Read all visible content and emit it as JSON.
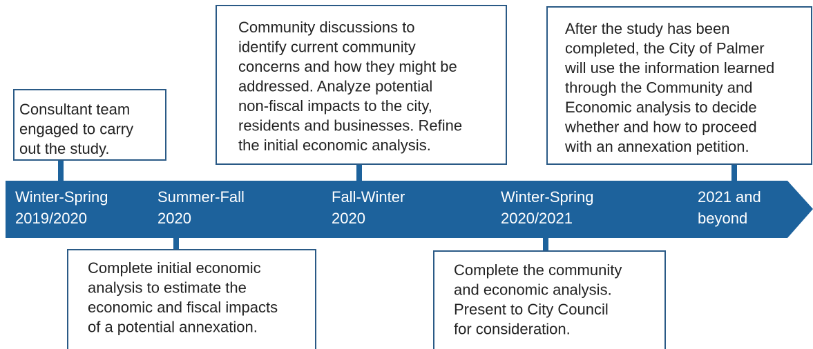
{
  "milestones": [
    {
      "period": [
        "Winter-Spring",
        "2019/2020"
      ],
      "description": [
        "Consultant team",
        "engaged to carry",
        "out the study."
      ]
    },
    {
      "period": [
        "Summer-Fall",
        "2020"
      ],
      "description": [
        "Complete initial economic",
        "analysis to estimate the",
        "economic and fiscal impacts",
        "of a potential annexation."
      ]
    },
    {
      "period": [
        "Fall-Winter",
        "2020"
      ],
      "description": [
        "Community discussions to",
        "identify current community",
        "concerns and how they might be",
        "addressed. Analyze potential",
        "non-fiscal impacts to the city,",
        "residents and businesses. Refine",
        "the initial economic analysis."
      ]
    },
    {
      "period": [
        "Winter-Spring",
        "2020/2021"
      ],
      "description": [
        "Complete the community",
        "and economic analysis.",
        "Present to City Council",
        "for consideration."
      ]
    },
    {
      "period": [
        "2021 and",
        "beyond"
      ],
      "description": [
        "After the study has been",
        "completed, the City of Palmer",
        "will use the information learned",
        "through the Community and",
        "Economic analysis to decide",
        "whether and how to proceed",
        "with an annexation petition."
      ]
    }
  ]
}
